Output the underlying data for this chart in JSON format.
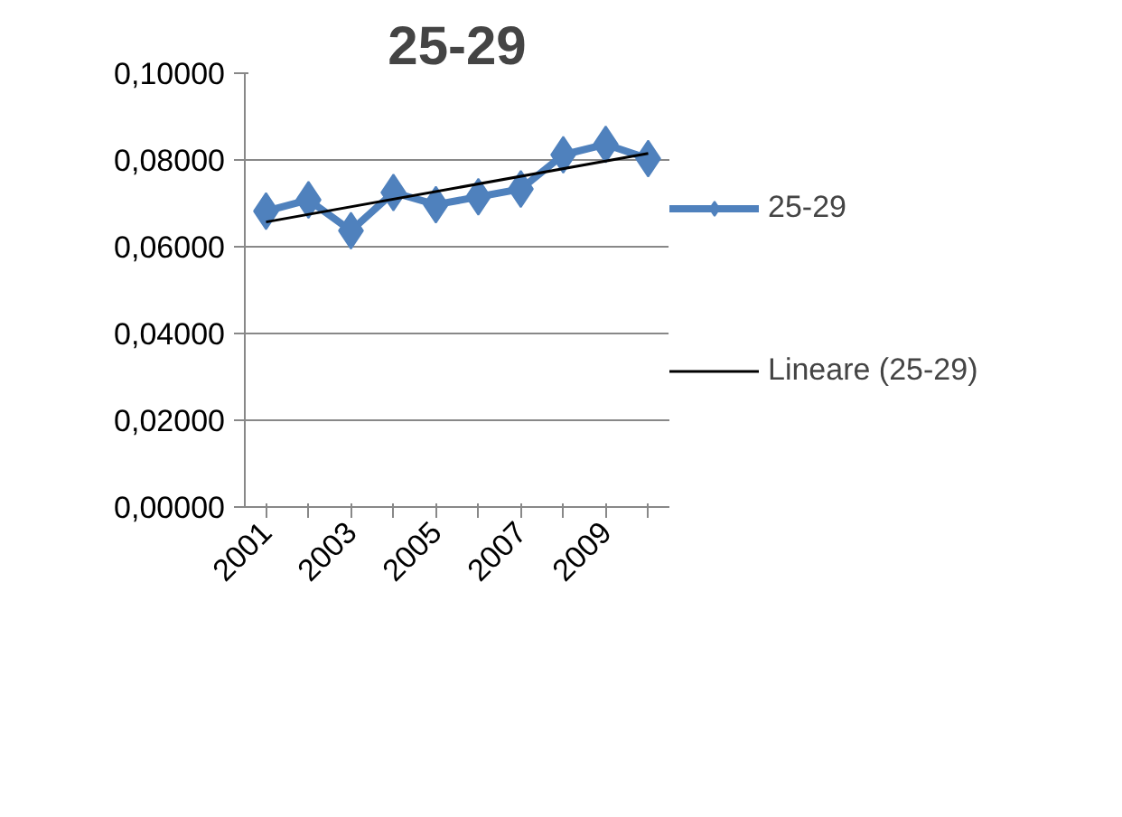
{
  "chart_data": {
    "type": "line",
    "title": "25-29",
    "x": [
      2001,
      2002,
      2003,
      2004,
      2005,
      2006,
      2007,
      2008,
      2009,
      2010
    ],
    "series": [
      {
        "name": "25-29",
        "color": "#4f81bd",
        "values": [
          0.0682,
          0.0708,
          0.0637,
          0.0725,
          0.0697,
          0.0715,
          0.0733,
          0.0812,
          0.0836,
          0.0803
        ],
        "marker": "diamond"
      },
      {
        "name": "Lineare (25-29)",
        "color": "#000000",
        "x": [
          2001,
          2010
        ],
        "values": [
          0.0657,
          0.0815
        ],
        "marker": "none"
      }
    ],
    "xlim": [
      2000.5,
      2010.5
    ],
    "xticks": [
      {
        "value": 2001,
        "label": "2001"
      },
      {
        "value": 2002,
        "label": null
      },
      {
        "value": 2003,
        "label": "2003"
      },
      {
        "value": 2004,
        "label": null
      },
      {
        "value": 2005,
        "label": "2005"
      },
      {
        "value": 2006,
        "label": null
      },
      {
        "value": 2007,
        "label": "2007"
      },
      {
        "value": 2008,
        "label": null
      },
      {
        "value": 2009,
        "label": "2009"
      },
      {
        "value": 2010,
        "label": null
      }
    ],
    "ylim": [
      0,
      0.1
    ],
    "yticks": [
      {
        "value": 0,
        "label": "0,00000"
      },
      {
        "value": 0.02,
        "label": "0,02000"
      },
      {
        "value": 0.04,
        "label": "0,04000"
      },
      {
        "value": 0.06,
        "label": "0,06000"
      },
      {
        "value": 0.08,
        "label": "0,08000"
      },
      {
        "value": 0.1,
        "label": "0,10000"
      }
    ],
    "grid": "y",
    "legend": "right",
    "line_style": "solid"
  }
}
